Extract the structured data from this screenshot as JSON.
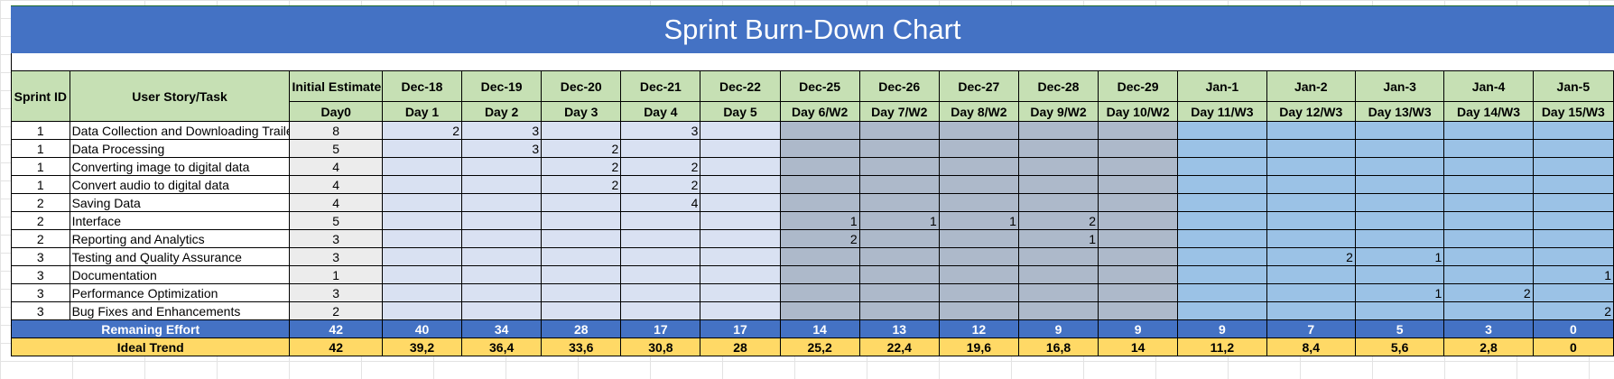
{
  "title": "Sprint Burn-Down Chart",
  "headers": {
    "sprint_id": "Sprint ID",
    "task": "User Story/Task",
    "initial_estimate": "Initial Estimate",
    "day0": "Day0",
    "dates": [
      "Dec-18",
      "Dec-19",
      "Dec-20",
      "Dec-21",
      "Dec-22",
      "Dec-25",
      "Dec-26",
      "Dec-27",
      "Dec-28",
      "Dec-29",
      "Jan-1",
      "Jan-2",
      "Jan-3",
      "Jan-4",
      "Jan-5"
    ],
    "days": [
      "Day 1",
      "Day 2",
      "Day 3",
      "Day 4",
      "Day 5",
      "Day 6/W2",
      "Day 7/W2",
      "Day 8/W2",
      "Day 9/W2",
      "Day 10/W2",
      "Day 11/W3",
      "Day 12/W3",
      "Day 13/W3",
      "Day 14/W3",
      "Day 15/W3"
    ]
  },
  "rows": [
    {
      "sprint": "1",
      "task": "Data Collection and Downloading Trailers",
      "estimate": "8",
      "days": [
        "2",
        "3",
        "",
        "3",
        "",
        "",
        "",
        "",
        "",
        "",
        "",
        "",
        "",
        "",
        ""
      ]
    },
    {
      "sprint": "1",
      "task": "Data Processing",
      "estimate": "5",
      "days": [
        "",
        "3",
        "2",
        "",
        "",
        "",
        "",
        "",
        "",
        "",
        "",
        "",
        "",
        "",
        ""
      ]
    },
    {
      "sprint": "1",
      "task": "Converting image to digital data",
      "estimate": "4",
      "days": [
        "",
        "",
        "2",
        "2",
        "",
        "",
        "",
        "",
        "",
        "",
        "",
        "",
        "",
        "",
        ""
      ]
    },
    {
      "sprint": "1",
      "task": "Convert audio to digital data",
      "estimate": "4",
      "days": [
        "",
        "",
        "2",
        "2",
        "",
        "",
        "",
        "",
        "",
        "",
        "",
        "",
        "",
        "",
        ""
      ]
    },
    {
      "sprint": "2",
      "task": "Saving Data",
      "estimate": "4",
      "days": [
        "",
        "",
        "",
        "4",
        "",
        "",
        "",
        "",
        "",
        "",
        "",
        "",
        "",
        "",
        ""
      ]
    },
    {
      "sprint": "2",
      "task": "Interface",
      "estimate": "5",
      "days": [
        "",
        "",
        "",
        "",
        "",
        "1",
        "1",
        "1",
        "2",
        "",
        "",
        "",
        "",
        "",
        ""
      ]
    },
    {
      "sprint": "2",
      "task": "Reporting and Analytics",
      "estimate": "3",
      "days": [
        "",
        "",
        "",
        "",
        "",
        "2",
        "",
        "",
        "1",
        "",
        "",
        "",
        "",
        "",
        ""
      ]
    },
    {
      "sprint": "3",
      "task": "Testing and Quality Assurance",
      "estimate": "3",
      "days": [
        "",
        "",
        "",
        "",
        "",
        "",
        "",
        "",
        "",
        "",
        "",
        "2",
        "1",
        "",
        ""
      ]
    },
    {
      "sprint": "3",
      "task": "Documentation",
      "estimate": "1",
      "days": [
        "",
        "",
        "",
        "",
        "",
        "",
        "",
        "",
        "",
        "",
        "",
        "",
        "",
        "",
        "1"
      ]
    },
    {
      "sprint": "3",
      "task": "Performance Optimization",
      "estimate": "3",
      "days": [
        "",
        "",
        "",
        "",
        "",
        "",
        "",
        "",
        "",
        "",
        "",
        "",
        "1",
        "2",
        ""
      ]
    },
    {
      "sprint": "3",
      "task": "Bug Fixes and Enhancements",
      "estimate": "2",
      "days": [
        "",
        "",
        "",
        "",
        "",
        "",
        "",
        "",
        "",
        "",
        "",
        "",
        "",
        "",
        "2"
      ]
    }
  ],
  "remaining": {
    "label": "Remaning Effort",
    "initial": "42",
    "values": [
      "40",
      "34",
      "28",
      "17",
      "17",
      "14",
      "13",
      "12",
      "9",
      "9",
      "9",
      "7",
      "5",
      "3",
      "0"
    ]
  },
  "ideal": {
    "label": "Ideal Trend",
    "initial": "42",
    "values": [
      "39,2",
      "36,4",
      "33,6",
      "30,8",
      "28",
      "25,2",
      "22,4",
      "19,6",
      "16,8",
      "14",
      "11,2",
      "8,4",
      "5,6",
      "2,8",
      "0"
    ]
  },
  "colors": {
    "title_bg": "#4472c4",
    "header_bg": "#c6e0b4",
    "week1": "#d9e1f2",
    "week2": "#adb9ca",
    "week3": "#9bc2e6",
    "remaining_bg": "#4472c4",
    "ideal_bg": "#ffd966"
  }
}
